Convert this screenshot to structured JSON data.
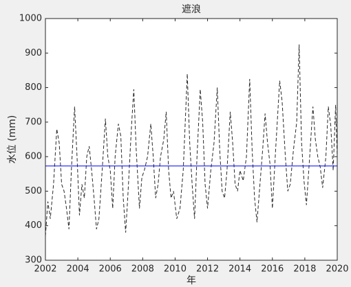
{
  "chart_data": {
    "type": "line",
    "title": "遮浪",
    "ylabel": "水位 (mm)",
    "xlabel": "年",
    "xlim": [
      2002,
      2020
    ],
    "xticks": [
      2002,
      2004,
      2006,
      2008,
      2010,
      2012,
      2014,
      2016,
      2018,
      2020
    ],
    "ylim": [
      300,
      1000
    ],
    "yticks": [
      300,
      400,
      500,
      600,
      700,
      800,
      900,
      1000
    ],
    "x": [
      2002.0,
      2002.15,
      2002.3,
      2002.5,
      2002.7,
      2002.85,
      2003.0,
      2003.15,
      2003.3,
      2003.45,
      2003.6,
      2003.8,
      2003.95,
      2004.1,
      2004.25,
      2004.4,
      2004.55,
      2004.7,
      2004.85,
      2005.0,
      2005.15,
      2005.3,
      2005.5,
      2005.7,
      2005.85,
      2006.0,
      2006.15,
      2006.3,
      2006.5,
      2006.65,
      2006.8,
      2006.95,
      2007.1,
      2007.3,
      2007.45,
      2007.6,
      2007.8,
      2007.95,
      2008.1,
      2008.3,
      2008.5,
      2008.65,
      2008.8,
      2008.95,
      2009.1,
      2009.3,
      2009.45,
      2009.6,
      2009.75,
      2009.9,
      2010.1,
      2010.3,
      2010.5,
      2010.75,
      2010.9,
      2011.05,
      2011.2,
      2011.35,
      2011.55,
      2011.7,
      2011.85,
      2012.0,
      2012.2,
      2012.4,
      2012.6,
      2012.75,
      2012.9,
      2013.05,
      2013.2,
      2013.4,
      2013.55,
      2013.7,
      2013.85,
      2014.0,
      2014.2,
      2014.4,
      2014.6,
      2014.75,
      2014.9,
      2015.05,
      2015.2,
      2015.4,
      2015.55,
      2015.7,
      2015.85,
      2016.0,
      2016.2,
      2016.45,
      2016.6,
      2016.8,
      2016.95,
      2017.1,
      2017.3,
      2017.5,
      2017.65,
      2017.8,
      2017.95,
      2018.1,
      2018.3,
      2018.5,
      2018.65,
      2018.8,
      2018.95,
      2019.1,
      2019.3,
      2019.45,
      2019.6,
      2019.75,
      2019.9,
      2020.0
    ],
    "series": [
      {
        "color": "#262626",
        "dashed": true,
        "values": [
          370,
          470,
          420,
          520,
          680,
          640,
          520,
          500,
          450,
          390,
          560,
          745,
          600,
          430,
          520,
          480,
          600,
          630,
          560,
          480,
          390,
          420,
          560,
          710,
          600,
          560,
          450,
          600,
          695,
          660,
          480,
          380,
          500,
          680,
          795,
          620,
          450,
          540,
          560,
          600,
          695,
          600,
          480,
          520,
          600,
          650,
          730,
          560,
          480,
          500,
          420,
          450,
          560,
          840,
          640,
          520,
          420,
          600,
          795,
          700,
          520,
          450,
          560,
          640,
          800,
          620,
          500,
          480,
          560,
          730,
          640,
          520,
          500,
          560,
          530,
          600,
          825,
          620,
          480,
          410,
          500,
          620,
          725,
          640,
          580,
          450,
          620,
          820,
          760,
          600,
          500,
          520,
          620,
          700,
          925,
          640,
          530,
          460,
          600,
          745,
          650,
          600,
          570,
          510,
          600,
          745,
          690,
          560,
          750,
          600
        ]
      }
    ],
    "hlines": [
      {
        "value": 573,
        "color": "#0000ff"
      }
    ]
  }
}
